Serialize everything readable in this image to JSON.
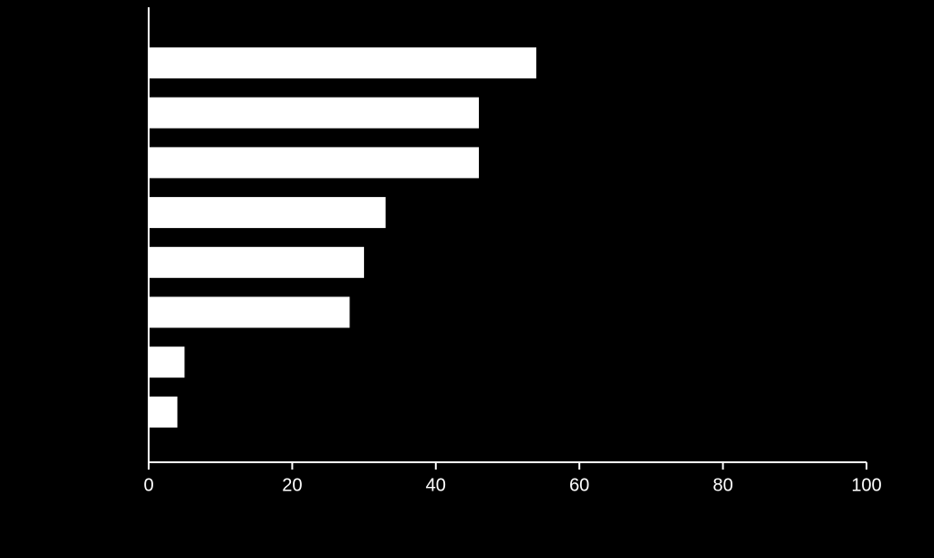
{
  "chart_data": {
    "type": "bar",
    "orientation": "horizontal",
    "categories": [
      null,
      null,
      null,
      null,
      null,
      null,
      null,
      null
    ],
    "values": [
      54,
      46,
      46,
      33,
      30,
      28,
      5,
      4
    ],
    "color": "#ffffff",
    "xlim": [
      0,
      100
    ],
    "xticks": [
      0,
      20,
      40,
      60,
      80,
      100
    ]
  }
}
